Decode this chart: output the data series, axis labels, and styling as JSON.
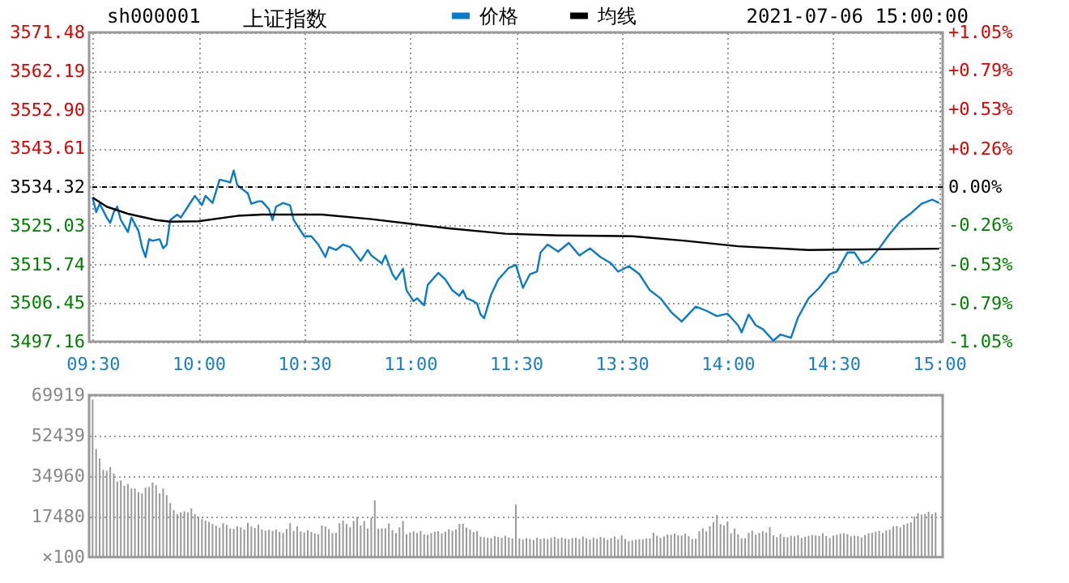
{
  "chart_data": [
    {
      "type": "line",
      "title": "上证指数",
      "annotations": [
        "sh000001",
        "2021-07-06 15:00:00"
      ],
      "categories": [
        "09:30",
        null,
        null,
        null,
        null,
        null,
        null,
        null,
        null,
        null,
        null,
        null,
        null,
        null,
        null,
        null,
        null,
        null,
        null,
        null,
        null,
        null,
        null,
        null,
        null,
        null,
        null,
        null,
        null,
        null,
        "10:00",
        null,
        null,
        null,
        null,
        null,
        null,
        null,
        null,
        null,
        null,
        null,
        null,
        null,
        null,
        null,
        null,
        null,
        null,
        null,
        null,
        null,
        null,
        null,
        null,
        null,
        null,
        null,
        null,
        null,
        "10:30",
        null,
        null,
        null,
        null,
        null,
        null,
        null,
        null,
        null,
        null,
        null,
        null,
        null,
        null,
        null,
        null,
        null,
        null,
        null,
        null,
        null,
        null,
        null,
        null,
        null,
        null,
        null,
        null,
        null,
        "11:00",
        null,
        null,
        null,
        null,
        null,
        null,
        null,
        null,
        null,
        null,
        null,
        null,
        null,
        null,
        null,
        null,
        null,
        null,
        null,
        null,
        null,
        null,
        null,
        null,
        null,
        null,
        null,
        null,
        null,
        "11:30",
        null,
        null,
        null,
        null,
        null,
        null,
        null,
        null,
        null,
        null,
        null,
        null,
        null,
        null,
        null,
        null,
        null,
        null,
        null,
        null,
        null,
        null,
        null,
        null,
        null,
        null,
        null,
        null,
        null,
        "13:30",
        null,
        null,
        null,
        null,
        null,
        null,
        null,
        null,
        null,
        null,
        null,
        null,
        null,
        null,
        null,
        null,
        null,
        null,
        null,
        null,
        null,
        null,
        null,
        null,
        null,
        null,
        null,
        null,
        null,
        "14:00",
        null,
        null,
        null,
        null,
        null,
        null,
        null,
        null,
        null,
        null,
        null,
        null,
        null,
        null,
        null,
        null,
        null,
        null,
        null,
        null,
        null,
        null,
        null,
        null,
        null,
        null,
        null,
        null,
        null,
        "14:30",
        null,
        null,
        null,
        null,
        null,
        null,
        null,
        null,
        null,
        null,
        null,
        null,
        null,
        null,
        null,
        null,
        null,
        null,
        null,
        null,
        null,
        null,
        null,
        null,
        null,
        null,
        null,
        null,
        null,
        "15:00"
      ],
      "ylim": [
        3497.16,
        3571.48
      ],
      "yticks": [
        3497.16,
        3506.45,
        3515.74,
        3525.03,
        3534.32,
        3543.61,
        {
          "value": 3552.9,
          "label": "3552.90"
        },
        3562.19,
        3571.48
      ],
      "y2lim": [
        -1.05,
        1.05
      ],
      "y2ticks": [
        {
          "value": -1.05,
          "label": "-1.05%"
        },
        {
          "value": -0.79,
          "label": "-0.79%"
        },
        {
          "value": -0.53,
          "label": "-0.53%"
        },
        {
          "value": -0.26,
          "label": "-0.26%"
        },
        {
          "value": 0,
          "label": "0.00%"
        },
        {
          "value": 0.26,
          "label": "+0.26%"
        },
        {
          "value": 0.53,
          "label": "+0.53%"
        },
        {
          "value": 0.79,
          "label": "+0.79%"
        },
        {
          "value": 1.05,
          "label": "+1.05%"
        }
      ],
      "ref_lines": [
        {
          "axis": "y2",
          "value": 0,
          "line_style": "dashed",
          "color": "#000000"
        }
      ],
      "grid": true,
      "legend": "top",
      "series": [
        {
          "name": "价格",
          "color": "#0a7bc9",
          "values": [
            3531.8,
            3528.3,
            3530.3,
            null,
            3527.0,
            3525.7,
            3528.3,
            3529.6,
            3526.4,
            null,
            3523.5,
            3527.0,
            null,
            3523.8,
            3519.9,
            3517.5,
            3521.8,
            3521.4,
            null,
            3521.8,
            3519.6,
            3520.5,
            3526.4,
            null,
            3527.7,
            3527.0,
            null,
            3529.6,
            null,
            3532.2,
            null,
            3530.0,
            3532.2,
            null,
            3530.5,
            null,
            3536.1,
            null,
            3535.7,
            3535.4,
            3538.3,
            3534.8,
            3534.1,
            null,
            3532.8,
            3530.3,
            null,
            3530.9,
            3530.9,
            null,
            3529.0,
            3526.4,
            3529.6,
            null,
            3530.5,
            null,
            3529.9,
            3526.4,
            null,
            null,
            3522.5,
            null,
            3522.5,
            null,
            3520.5,
            null,
            3517.5,
            3519.9,
            null,
            3519.2,
            null,
            3520.5,
            null,
            3519.9,
            null,
            null,
            3516.6,
            null,
            3519.2,
            3517.9,
            null,
            null,
            3516.0,
            3517.9,
            null,
            3513.4,
            3512.1,
            null,
            3514.7,
            3509.5,
            null,
            3506.9,
            3507.6,
            null,
            3505.9,
            3510.8,
            null,
            null,
            3513.7,
            null,
            3512.1,
            null,
            3509.5,
            null,
            3508.2,
            3509.5,
            3507.6,
            null,
            3506.9,
            3506.3,
            3503.7,
            3502.8,
            null,
            3508.5,
            null,
            3512.1,
            null,
            null,
            3514.9,
            null,
            3515.6,
            null,
            3510.1,
            null,
            3513.4,
            null,
            3514.0,
            3518.6,
            null,
            3520.5,
            null,
            null,
            3518.8,
            null,
            null,
            3520.9,
            null,
            null,
            3517.9,
            null,
            null,
            3519.6,
            null,
            null,
            3517.5,
            null,
            null,
            3516.0,
            null,
            3514.0,
            null,
            null,
            3515.3,
            null,
            null,
            3513.4,
            null,
            null,
            3509.5,
            null,
            null,
            3507.6,
            null,
            null,
            3504.3,
            null,
            null,
            3502.0,
            null,
            null,
            null,
            3505.6,
            null,
            null,
            3504.6,
            null,
            null,
            3503.3,
            null,
            null,
            3503.9,
            null,
            null,
            3501.1,
            3499.4,
            null,
            3503.7,
            null,
            3501.1,
            null,
            3500.2,
            null,
            null,
            3497.4,
            null,
            3498.9,
            null,
            null,
            3498.1,
            null,
            3503.0,
            null,
            null,
            3507.6,
            null,
            null,
            3510.1,
            null,
            null,
            3513.4,
            null,
            3514.0,
            null,
            null,
            3518.6,
            null,
            3518.6,
            null,
            3516.0,
            null,
            3516.6,
            null,
            null,
            3519.6,
            null,
            null,
            3523.1,
            null,
            null,
            3526.1,
            null,
            null,
            3528.0,
            null,
            null,
            3530.3,
            null,
            null,
            3531.3,
            null,
            3530.5
          ]
        },
        {
          "name": "均线",
          "color": "#000000",
          "values": [
            3531.8,
            null,
            null,
            null,
            3529.6,
            null,
            null,
            null,
            null,
            null,
            3527.9,
            null,
            null,
            null,
            null,
            null,
            null,
            null,
            3526.4,
            null,
            null,
            null,
            3526.0,
            null,
            null,
            null,
            null,
            null,
            null,
            null,
            3526.1,
            null,
            null,
            null,
            null,
            null,
            null,
            null,
            null,
            null,
            null,
            3527.4,
            null,
            null,
            null,
            null,
            null,
            null,
            3527.7,
            null,
            null,
            null,
            null,
            null,
            null,
            null,
            null,
            null,
            null,
            null,
            null,
            null,
            null,
            null,
            null,
            3527.7,
            null,
            null,
            null,
            null,
            null,
            null,
            null,
            null,
            null,
            null,
            null,
            null,
            null,
            3526.6,
            null,
            null,
            null,
            null,
            null,
            null,
            null,
            null,
            null,
            null,
            null,
            null,
            3525.3,
            null,
            null,
            null,
            null,
            null,
            null,
            null,
            null,
            3524.4,
            null,
            null,
            null,
            null,
            null,
            null,
            null,
            null,
            null,
            null,
            null,
            null,
            null,
            null,
            null,
            3523.1,
            null,
            null,
            null,
            null,
            null,
            null,
            null,
            null,
            null,
            null,
            null,
            null,
            null,
            null,
            3522.7,
            null,
            null,
            null,
            null,
            null,
            null,
            null,
            null,
            null,
            null,
            null,
            null,
            null,
            null,
            null,
            null,
            null,
            null,
            null,
            null,
            3522.5,
            null,
            null,
            null,
            null,
            null,
            null,
            null,
            null,
            null,
            null,
            null,
            null,
            null,
            null,
            3521.4,
            null,
            null,
            null,
            null,
            null,
            null,
            null,
            null,
            null,
            null,
            null,
            null,
            null,
            null,
            3520.1,
            null,
            null,
            null,
            null,
            null,
            null,
            null,
            null,
            null,
            null,
            null,
            null,
            null,
            null,
            null,
            null,
            null,
            null,
            null,
            3519.2,
            null,
            null,
            null,
            null,
            null,
            null,
            null,
            null,
            null,
            null,
            null,
            null,
            null,
            null,
            null,
            null,
            null,
            null,
            null,
            null,
            null,
            null,
            null,
            null,
            null,
            null,
            null,
            null,
            null,
            null,
            null,
            null,
            null,
            null,
            null,
            null,
            3519.5
          ]
        }
      ]
    },
    {
      "type": "bar",
      "color": "#999999",
      "tick_labels": "y",
      "grid": "y",
      "ylabel": "×100",
      "ylim": [
        0,
        69919
      ],
      "yticks": [
        17480,
        34960,
        52439,
        69919
      ],
      "categories": [
        null,
        null,
        null,
        null,
        null,
        null,
        null,
        null,
        null,
        null,
        null,
        null,
        null,
        null,
        null,
        null,
        null,
        null,
        null,
        null,
        null,
        null,
        null,
        null,
        null,
        null,
        null,
        null,
        null,
        null,
        null,
        null,
        null,
        null,
        null,
        null,
        null,
        null,
        null,
        null,
        null,
        null,
        null,
        null,
        null,
        null,
        null,
        null,
        null,
        null,
        null,
        null,
        null,
        null,
        null,
        null,
        null,
        null,
        null,
        null,
        null,
        null,
        null,
        null,
        null,
        null,
        null,
        null,
        null,
        null,
        null,
        null,
        null,
        null,
        null,
        null,
        null,
        null,
        null,
        null,
        null,
        null,
        null,
        null,
        null,
        null,
        null,
        null,
        null,
        null,
        null,
        null,
        null,
        null,
        null,
        null,
        null,
        null,
        null,
        null,
        null,
        null,
        null,
        null,
        null,
        null,
        null,
        null,
        null,
        null,
        null,
        null,
        null,
        null,
        null,
        null,
        null,
        null,
        null,
        null,
        null,
        null,
        null,
        null,
        null,
        null,
        null,
        null,
        null,
        null,
        null,
        null,
        null,
        null,
        null,
        null,
        null,
        null,
        null,
        null,
        null,
        null,
        null,
        null,
        null,
        null,
        null,
        null,
        null,
        null,
        null,
        null,
        null,
        null,
        null,
        null,
        null,
        null,
        null,
        null,
        null,
        null,
        null,
        null,
        null,
        null,
        null,
        null,
        null,
        null,
        null,
        null,
        null,
        null,
        null,
        null,
        null,
        null,
        null,
        null,
        null,
        null,
        null,
        null,
        null,
        null,
        null,
        null,
        null,
        null,
        null,
        null,
        null,
        null,
        null,
        null,
        null,
        null,
        null,
        null,
        null,
        null,
        null,
        null,
        null,
        null,
        null,
        null,
        null,
        null,
        null,
        null,
        null,
        null,
        null,
        null,
        null,
        null,
        null,
        null,
        null,
        null,
        null,
        null,
        null,
        null,
        null,
        null,
        null,
        null,
        null,
        null,
        null,
        null,
        null,
        null,
        null,
        null,
        null,
        null,
        null
      ],
      "values": [
        68000,
        46600,
        42600,
        37700,
        37300,
        38900,
        36100,
        32600,
        33100,
        30800,
        31500,
        29600,
        29600,
        28000,
        27500,
        30000,
        30300,
        32200,
        31000,
        27500,
        29600,
        26800,
        23300,
        20300,
        18600,
        19300,
        19800,
        19300,
        21000,
        18600,
        17500,
        16400,
        15800,
        15200,
        14300,
        13600,
        12700,
        14600,
        13900,
        12400,
        12200,
        13300,
        12800,
        11900,
        14800,
        13200,
        12600,
        14100,
        11900,
        11400,
        11800,
        11300,
        11900,
        10900,
        10400,
        12100,
        14700,
        11300,
        13200,
        11100,
        10700,
        11600,
        10900,
        10200,
        9800,
        13600,
        13200,
        12100,
        10400,
        10500,
        14600,
        15800,
        14300,
        12900,
        15600,
        17300,
        13600,
        15600,
        12300,
        17000,
        24500,
        12300,
        12400,
        12500,
        14500,
        11600,
        10400,
        12800,
        15600,
        9900,
        10600,
        11100,
        10400,
        11300,
        9800,
        9600,
        10300,
        10900,
        11200,
        10200,
        11000,
        12000,
        11300,
        11900,
        14300,
        14400,
        12700,
        11900,
        10800,
        11300,
        8800,
        8600,
        8300,
        8200,
        9100,
        8700,
        8300,
        9200,
        8400,
        8100,
        22600,
        8100,
        7600,
        8200,
        7900,
        7400,
        8400,
        7800,
        8100,
        7700,
        8300,
        8700,
        7900,
        8400,
        8000,
        7700,
        8200,
        8400,
        7800,
        8900,
        8100,
        7600,
        8400,
        7900,
        8700,
        8300,
        7500,
        8200,
        8900,
        7700,
        9400,
        7800,
        6900,
        7200,
        7500,
        7700,
        7600,
        8000,
        8100,
        10500,
        9200,
        8300,
        8900,
        9800,
        9600,
        10200,
        9400,
        9300,
        10100,
        9000,
        7800,
        7900,
        11200,
        12400,
        11100,
        13300,
        15100,
        18200,
        14200,
        13600,
        15400,
        10300,
        12300,
        9800,
        8100,
        8200,
        10500,
        11400,
        9700,
        10400,
        11200,
        10600,
        12900,
        9400,
        8600,
        10000,
        8700,
        8600,
        9200,
        9000,
        9400,
        8300,
        8800,
        9200,
        9500,
        9300,
        9100,
        10300,
        9100,
        8200,
        9300,
        9600,
        10100,
        10300,
        9900,
        9000,
        9300,
        9100,
        8500,
        9600,
        10300,
        10500,
        11000,
        11300,
        10400,
        11500,
        11800,
        13200,
        13400,
        12800,
        14000,
        14500,
        15000,
        17500,
        19000,
        18400,
        18600,
        19600,
        18600,
        19300,
        null
      ]
    }
  ]
}
